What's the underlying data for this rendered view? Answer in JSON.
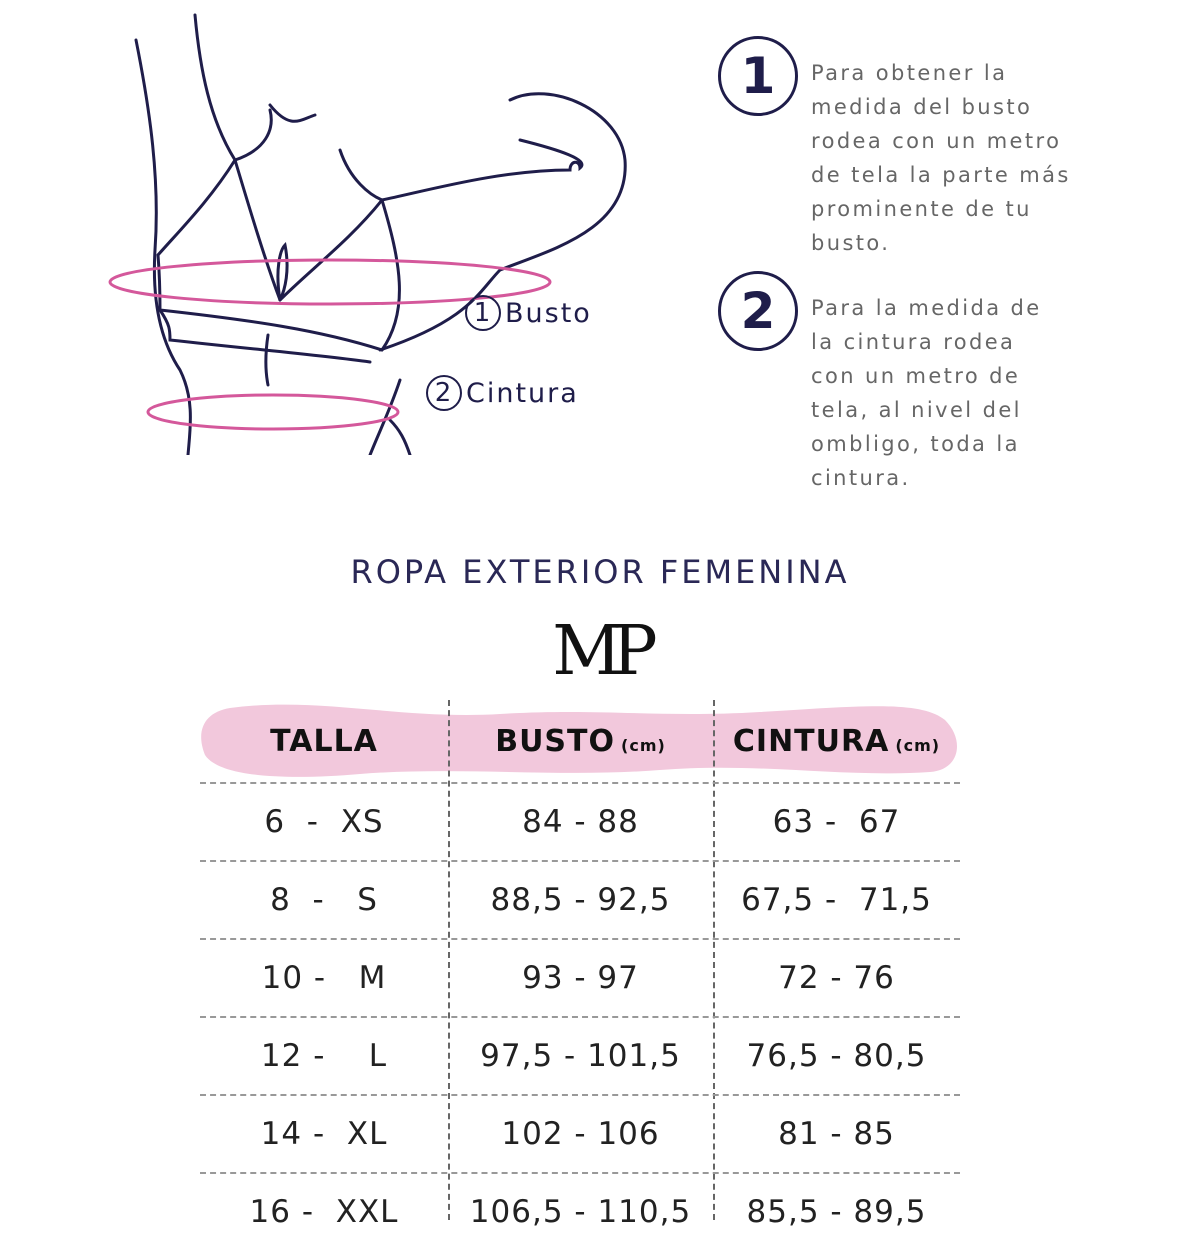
{
  "illustration": {
    "labels": [
      {
        "number": "1",
        "text": "Busto"
      },
      {
        "number": "2",
        "text": "Cintura"
      }
    ],
    "colors": {
      "line": "#1f1d4a",
      "measure": "#d4589b"
    }
  },
  "instructions": [
    {
      "number": "1",
      "lines": [
        "Para obtener la",
        "medida del busto",
        "rodea con un metro",
        "de tela la parte más",
        "prominente de tu",
        "busto."
      ]
    },
    {
      "number": "2",
      "lines": [
        "Para la medida de",
        "la cintura rodea",
        "con un metro de",
        "tela, al nivel del",
        "ombligo, toda la",
        "cintura."
      ]
    }
  ],
  "title": "ROPA EXTERIOR FEMENINA",
  "logo": "MP",
  "table": {
    "header_color": "#f2c8dc",
    "headers": [
      {
        "label": "TALLA",
        "unit": ""
      },
      {
        "label": "BUSTO",
        "unit": "(cm)"
      },
      {
        "label": "CINTURA",
        "unit": "(cm)"
      }
    ],
    "rows": [
      [
        "6  -  XS",
        "84 - 88",
        "63 -  67"
      ],
      [
        "8  -   S",
        "88,5 - 92,5",
        "67,5 -  71,5"
      ],
      [
        "10 -   M",
        "93 - 97",
        "72 - 76"
      ],
      [
        "12 -    L",
        "97,5 - 101,5",
        "76,5 - 80,5"
      ],
      [
        "14 -  XL",
        "102 - 106",
        "81 - 85"
      ],
      [
        "16 -  XXL",
        "106,5 - 110,5",
        "85,5 - 89,5"
      ]
    ]
  }
}
